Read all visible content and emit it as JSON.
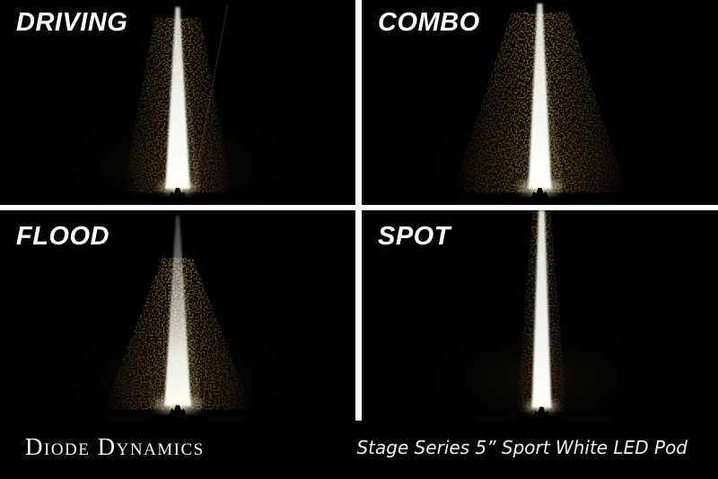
{
  "panels": [
    {
      "id": "driving",
      "label": "DRIVING"
    },
    {
      "id": "combo",
      "label": "COMBO"
    },
    {
      "id": "flood",
      "label": "FLOOD"
    },
    {
      "id": "spot",
      "label": "SPOT"
    }
  ],
  "footer": {
    "brand": "Diode Dynamics",
    "product": "Stage Series 5” Sport White LED Pod"
  },
  "colors": {
    "background": "#000000",
    "divider": "#ffffff",
    "label_text": "#ffffff",
    "beam_white": "#fffffa",
    "gravel_tan": "#a08049",
    "grass_green": "#7a8757"
  }
}
